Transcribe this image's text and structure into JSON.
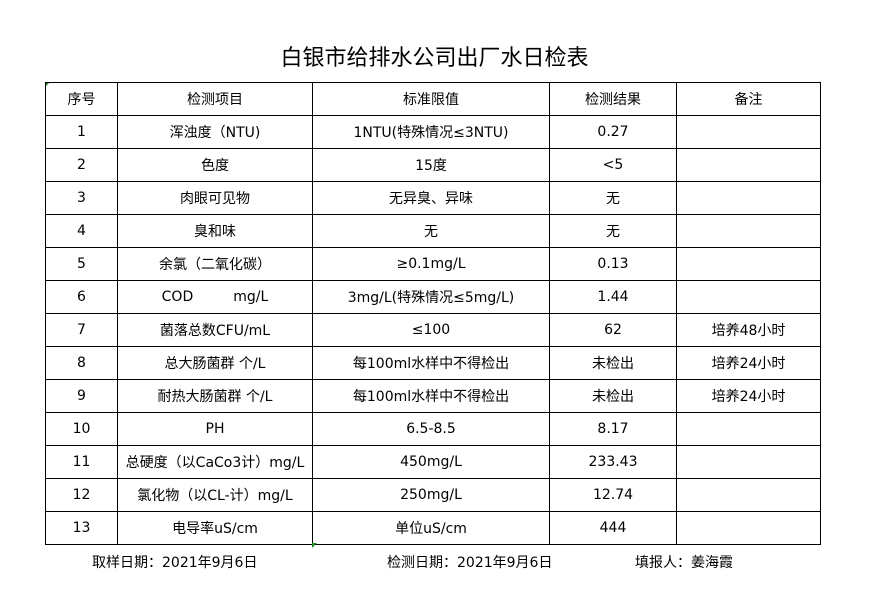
{
  "title": "白银市给排水公司出厂水日检表",
  "headers": [
    "序号",
    "检测项目",
    "标准限值",
    "检测结果",
    "备注"
  ],
  "rows": [
    [
      "1",
      "浑浊度（NTU)",
      "1NTU(特殊情况≤3NTU)",
      "0.27",
      ""
    ],
    [
      "2",
      "色度",
      "15度",
      "<5",
      ""
    ],
    [
      "3",
      "肉眼可见物",
      "无异臭、异味",
      "无",
      ""
    ],
    [
      "4",
      "臭和味",
      "无",
      "无",
      ""
    ],
    [
      "5",
      "余氯（二氧化碳）",
      "≥0.1mg/L",
      "0.13",
      ""
    ],
    [
      "6",
      "COD         mg/L",
      "3mg/L(特殊情况≤5mg/L)",
      "1.44",
      ""
    ],
    [
      "7",
      "菌落总数CFU/mL",
      "≤100",
      "62",
      "培养48小时"
    ],
    [
      "8",
      "总大肠菌群 个/L",
      "每100ml水样中不得检出",
      "未检出",
      "培养24小时"
    ],
    [
      "9",
      "耐热大肠菌群 个/L",
      "每100ml水样中不得检出",
      "未检出",
      "培养24小时"
    ],
    [
      "10",
      "PH",
      "6.5-8.5",
      "8.17",
      ""
    ],
    [
      "11",
      "总硬度（以CaCo3计）mg/L",
      "450mg/L",
      "233.43",
      ""
    ],
    [
      "12",
      "氯化物（以CL-计）mg/L",
      "250mg/L",
      "12.74",
      ""
    ],
    [
      "13",
      "电导率uS/cm",
      "单位uS/cm",
      "444",
      ""
    ]
  ],
  "footer": {
    "sample_date": "取样日期：2021年9月6日",
    "test_date": "检测日期：2021年9月6日",
    "reporter": "填报人：姜海霞"
  }
}
